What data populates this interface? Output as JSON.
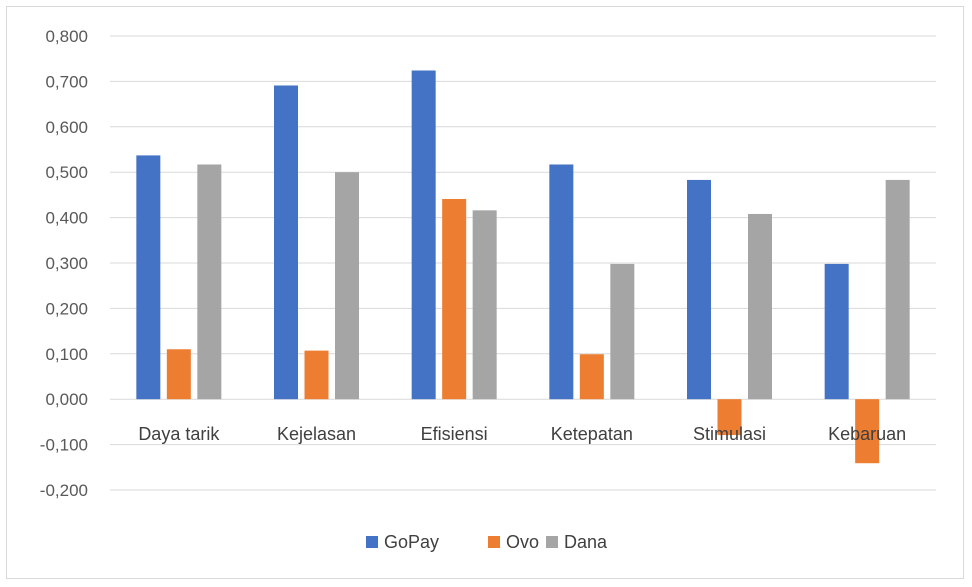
{
  "chart_data": {
    "type": "bar",
    "title": "",
    "xlabel": "",
    "ylabel": "",
    "categories": [
      "Daya tarik",
      "Kejelasan",
      "Efisiensi",
      "Ketepatan",
      "Stimulasi",
      "Kebaruan"
    ],
    "series": [
      {
        "name": "GoPay",
        "color": "#4472C4",
        "values": [
          0.537,
          0.691,
          0.724,
          0.517,
          0.483,
          0.298
        ]
      },
      {
        "name": "Ovo",
        "color": "#ED7D31",
        "values": [
          0.11,
          0.107,
          0.441,
          0.099,
          -0.079,
          -0.141
        ]
      },
      {
        "name": "Dana",
        "color": "#A5A5A5",
        "values": [
          0.517,
          0.5,
          0.416,
          0.298,
          0.408,
          0.483
        ]
      }
    ],
    "ylim": [
      -0.2,
      0.8
    ],
    "yticks": [
      "0,800",
      "0,700",
      "0,600",
      "0,500",
      "0,400",
      "0,300",
      "0,200",
      "0,100",
      "0,000",
      "-0,100",
      "-0,200"
    ],
    "grid": true,
    "legend_position": "bottom"
  }
}
